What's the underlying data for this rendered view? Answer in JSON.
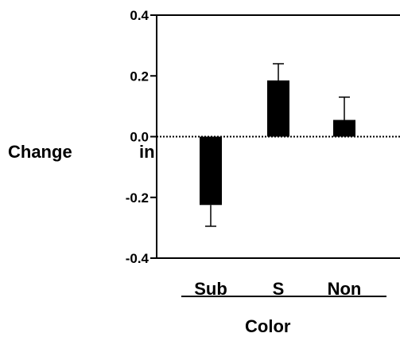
{
  "chart_data": {
    "type": "bar",
    "title": "",
    "ylabel_parts": [
      "Change",
      "in"
    ],
    "xlabel": "Color",
    "categories": [
      "Sub",
      "S",
      "Non"
    ],
    "values": [
      -0.225,
      0.185,
      0.055
    ],
    "errors": [
      0.07,
      0.055,
      0.075
    ],
    "error_direction": [
      "down",
      "up",
      "up"
    ],
    "ylim": [
      -0.4,
      0.4
    ],
    "yticks": [
      -0.4,
      -0.2,
      0.0,
      0.2,
      0.4
    ],
    "ytick_labels": [
      "-0.4",
      "-0.2",
      "0.0",
      "0.2",
      "0.4"
    ],
    "zero_line": "dotted",
    "bar_color": "#000000",
    "grid": false,
    "legend": "none"
  }
}
